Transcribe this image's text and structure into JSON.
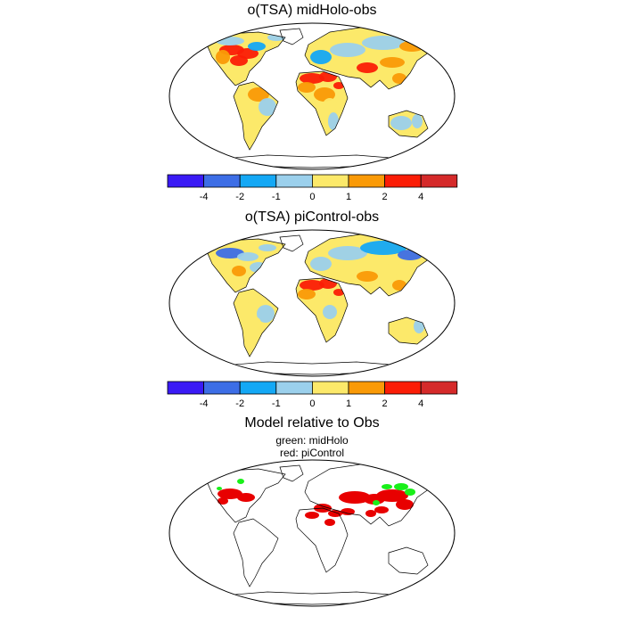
{
  "panels": [
    {
      "title": "o(TSA) midHolo-obs"
    },
    {
      "title": "o(TSA) piControl-obs"
    },
    {
      "title": "Model relative to Obs",
      "subtitle_line1": "green: midHolo",
      "subtitle_line2": "red: piControl"
    }
  ],
  "colorbar": {
    "tick_labels": [
      "-4",
      "-2",
      "-1",
      "0",
      "1",
      "2",
      "4"
    ],
    "colors": [
      "#3a1af5",
      "#3d6ee6",
      "#14a8f5",
      "#9bd0ec",
      "#fce96a",
      "#fa9a07",
      "#fb1d06",
      "#d52a2a"
    ]
  },
  "panel3_colors": {
    "midHolo": "#19f019",
    "piControl": "#e80000"
  }
}
